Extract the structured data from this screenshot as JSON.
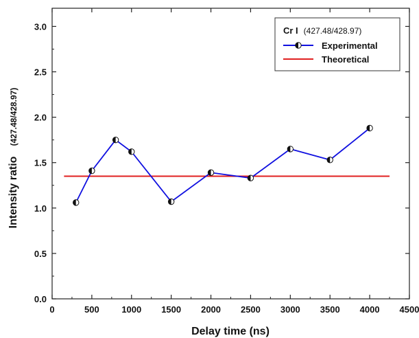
{
  "chart_data": {
    "type": "line",
    "xlabel": "Delay time (ns)",
    "ylabel": "Intensity ratio",
    "ylabel_sub": "(427.48/428.97)",
    "xlim": [
      0,
      4500
    ],
    "ylim": [
      0.0,
      3.2
    ],
    "x_ticks": [
      "0",
      "500",
      "1000",
      "1500",
      "2000",
      "2500",
      "3000",
      "3500",
      "4000",
      "4500"
    ],
    "y_ticks": [
      "0.0",
      "0.5",
      "1.0",
      "1.5",
      "2.0",
      "2.5",
      "3.0"
    ],
    "x_tick_values": [
      0,
      500,
      1000,
      1500,
      2000,
      2500,
      3000,
      3500,
      4000,
      4500
    ],
    "y_tick_values": [
      0.0,
      0.5,
      1.0,
      1.5,
      2.0,
      2.5,
      3.0
    ],
    "legend": {
      "title_main": "Cr I",
      "title_sub": "(427.48/428.97)",
      "placement": "top-right"
    },
    "series": [
      {
        "name": "Experimental",
        "kind": "line-marker",
        "color": "#1010e0",
        "marker": "half-filled-circle",
        "x": [
          300,
          500,
          800,
          1000,
          1500,
          2000,
          2500,
          3000,
          3500,
          4000
        ],
        "y": [
          1.06,
          1.41,
          1.75,
          1.62,
          1.07,
          1.39,
          1.33,
          1.65,
          1.53,
          1.88
        ]
      },
      {
        "name": "Theoretical",
        "kind": "line",
        "color": "#e02020",
        "x": [
          150,
          4250
        ],
        "y": [
          1.35,
          1.35
        ]
      }
    ]
  }
}
